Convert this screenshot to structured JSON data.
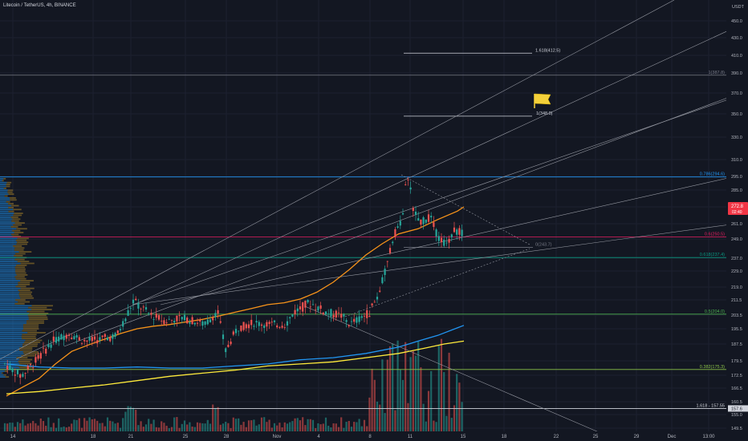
{
  "header": {
    "title": "Litecoin / TetherUS, 4h, BINANCE"
  },
  "chart_data": {
    "type": "candlestick",
    "symbol": "Litecoin / TetherUS",
    "interval": "4h",
    "exchange": "BINANCE",
    "currency": "USDT",
    "y_ticks": [
      450.0,
      430.0,
      410.0,
      390.0,
      370.0,
      350.0,
      330.0,
      310.0,
      295.0,
      285.0,
      273.0,
      261.0,
      249.0,
      237.0,
      229.0,
      219.0,
      211.5,
      203.5,
      195.5,
      187.5,
      179.5,
      172.5,
      166.5,
      160.5,
      155.0,
      149.5
    ],
    "x_ticks": [
      "14",
      "18",
      "21",
      "25",
      "28",
      "Nov",
      "4",
      "8",
      "11",
      "15",
      "18",
      "22",
      "25",
      "29",
      "Dec",
      "13:00"
    ],
    "last_price": "272.8",
    "countdown": "02:40",
    "horizontal_levels": [
      {
        "label": "1.618(412.5)",
        "price": 412.5
      },
      {
        "label": "1(387.8)",
        "price": 387.8
      },
      {
        "label": "1(348.0)",
        "price": 348.0
      },
      {
        "label": "0.786(294.6)",
        "price": 294.6
      },
      {
        "label": "0.6(250.5)",
        "price": 250.5
      },
      {
        "label": "0(243.7)",
        "price": 243.7
      },
      {
        "label": "0.618(237.4)",
        "price": 237.4
      },
      {
        "label": "0.5(204.0)",
        "price": 204.0
      },
      {
        "label": "0.382(175.3)",
        "price": 175.3
      },
      {
        "label": "1.618 - 157.55",
        "price": 157.55
      },
      {
        "label": "157.6",
        "price": 157.6
      }
    ],
    "moving_averages": [
      {
        "color": "#f7931a",
        "values": [
          [
            0,
            163
          ],
          [
            25,
            167
          ],
          [
            50,
            171
          ],
          [
            75,
            178
          ],
          [
            100,
            184
          ],
          [
            125,
            187
          ],
          [
            150,
            190
          ],
          [
            175,
            193
          ],
          [
            200,
            195.5
          ],
          [
            225,
            197
          ],
          [
            250,
            198
          ],
          [
            275,
            199.5
          ],
          [
            300,
            201
          ],
          [
            325,
            203
          ],
          [
            350,
            205
          ],
          [
            375,
            207
          ],
          [
            400,
            209
          ],
          [
            425,
            210
          ],
          [
            450,
            212
          ],
          [
            475,
            216
          ],
          [
            500,
            222
          ],
          [
            525,
            230
          ],
          [
            550,
            239
          ],
          [
            575,
            246
          ],
          [
            600,
            253
          ],
          [
            630,
            257
          ],
          [
            660,
            264
          ],
          [
            690,
            270
          ],
          [
            700,
            273
          ]
        ]
      },
      {
        "color": "#2196f3",
        "values": [
          [
            0,
            178
          ],
          [
            50,
            176.5
          ],
          [
            100,
            176
          ],
          [
            150,
            176
          ],
          [
            200,
            176.5
          ],
          [
            250,
            176
          ],
          [
            300,
            176
          ],
          [
            350,
            177
          ],
          [
            400,
            178
          ],
          [
            450,
            180
          ],
          [
            500,
            181
          ],
          [
            550,
            183
          ],
          [
            600,
            186
          ],
          [
            630,
            189
          ],
          [
            660,
            192
          ],
          [
            690,
            196
          ],
          [
            700,
            197.5
          ]
        ]
      },
      {
        "color": "#ffeb3b",
        "values": [
          [
            0,
            164
          ],
          [
            50,
            165
          ],
          [
            100,
            166.5
          ],
          [
            150,
            168
          ],
          [
            200,
            170
          ],
          [
            250,
            172
          ],
          [
            300,
            173.5
          ],
          [
            350,
            175
          ],
          [
            400,
            177
          ],
          [
            450,
            178
          ],
          [
            500,
            179
          ],
          [
            550,
            181
          ],
          [
            600,
            183
          ],
          [
            640,
            185.5
          ],
          [
            670,
            187.5
          ],
          [
            700,
            189
          ]
        ]
      }
    ],
    "flag_marker": {
      "price": 360
    }
  }
}
